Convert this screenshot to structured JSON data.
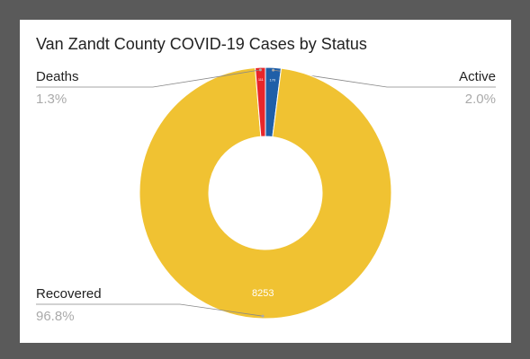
{
  "chart_data": {
    "type": "donut",
    "title": "Van Zandt County COVID-19 Cases by Status",
    "categories": [
      "Active",
      "Recovered",
      "Deaths"
    ],
    "values": [
      2.0,
      96.8,
      1.3
    ],
    "value_labels": [
      "2.0%",
      "96.8%",
      "1.3%"
    ],
    "counts": [
      170,
      8253,
      111
    ],
    "colors": [
      "#1f5fa8",
      "#f0c232",
      "#e8262a"
    ]
  }
}
